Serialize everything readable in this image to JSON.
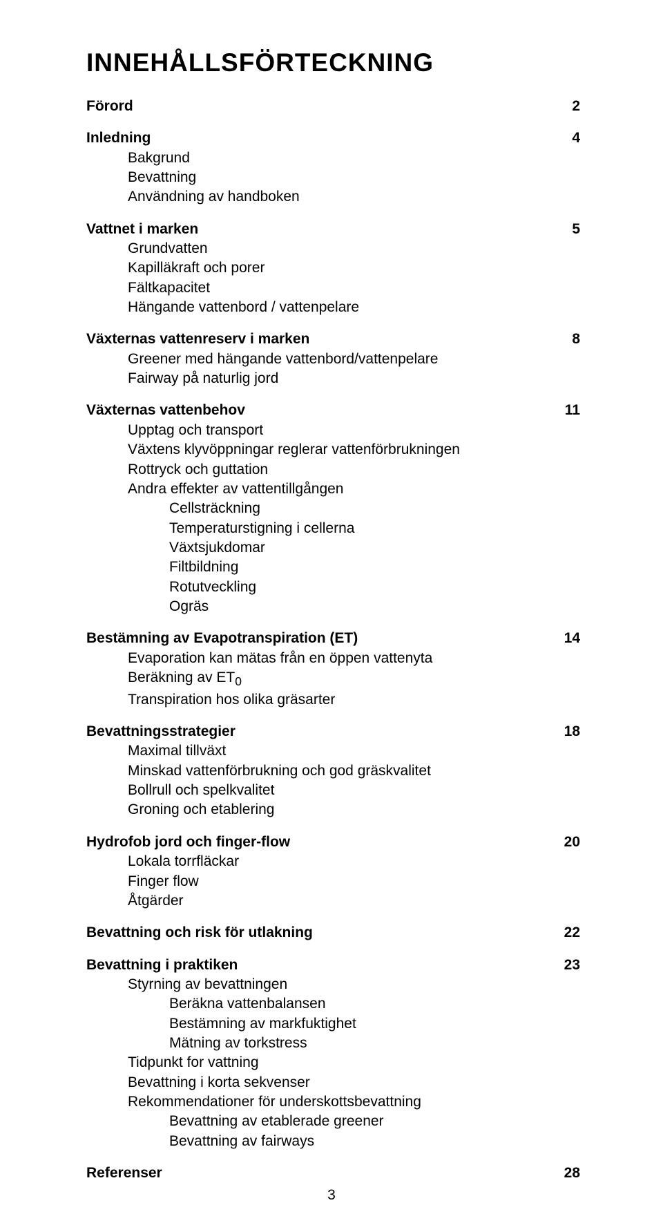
{
  "title": "INNEHÅLLSFÖRTECKNING",
  "footer_page": "3",
  "sections": [
    {
      "heading": "Förord",
      "page": "2",
      "items": []
    },
    {
      "heading": "Inledning",
      "page": "4",
      "items": [
        {
          "text": "Bakgrund",
          "level": 1
        },
        {
          "text": "Bevattning",
          "level": 1
        },
        {
          "text": "Användning av handboken",
          "level": 1
        }
      ]
    },
    {
      "heading": "Vattnet i marken",
      "page": "5",
      "items": [
        {
          "text": "Grundvatten",
          "level": 1
        },
        {
          "text": "Kapilläkraft och porer",
          "level": 1
        },
        {
          "text": "Fältkapacitet",
          "level": 1
        },
        {
          "text": "Hängande vattenbord / vattenpelare",
          "level": 1
        }
      ]
    },
    {
      "heading": "Växternas vattenreserv i marken",
      "page": "8",
      "items": [
        {
          "text": "Greener med hängande vattenbord/vattenpelare",
          "level": 1
        },
        {
          "text": "Fairway på naturlig jord",
          "level": 1
        }
      ]
    },
    {
      "heading": "Växternas vattenbehov",
      "page": "11",
      "items": [
        {
          "text": "Upptag och transport",
          "level": 1
        },
        {
          "text": "Växtens klyvöppningar reglerar vattenförbrukningen",
          "level": 1
        },
        {
          "text": "Rottryck och guttation",
          "level": 1
        },
        {
          "text": "Andra effekter av vattentillgången",
          "level": 1
        },
        {
          "text": "Cellsträckning",
          "level": 2
        },
        {
          "text": "Temperaturstigning i cellerna",
          "level": 2
        },
        {
          "text": "Växtsjukdomar",
          "level": 2
        },
        {
          "text": "Filtbildning",
          "level": 2
        },
        {
          "text": "Rotutveckling",
          "level": 2
        },
        {
          "text": "Ogräs",
          "level": 2
        }
      ]
    },
    {
      "heading": "Bestämning av Evapotranspiration (ET)",
      "page": "14",
      "items": [
        {
          "text": "Evaporation kan mätas från en öppen vattenyta",
          "level": 1
        },
        {
          "text": "Beräkning av ET",
          "level": 1,
          "sub": "0"
        },
        {
          "text": "Transpiration hos olika gräsarter",
          "level": 1
        }
      ]
    },
    {
      "heading": "Bevattningsstrategier",
      "page": "18",
      "items": [
        {
          "text": "Maximal tillväxt",
          "level": 1
        },
        {
          "text": "Minskad vattenförbrukning och god gräskvalitet",
          "level": 1
        },
        {
          "text": "Bollrull och spelkvalitet",
          "level": 1
        },
        {
          "text": "Groning och etablering",
          "level": 1
        }
      ]
    },
    {
      "heading": "Hydrofob jord och finger-flow",
      "page": "20",
      "items": [
        {
          "text": "Lokala torrfläckar",
          "level": 1
        },
        {
          "text": "Finger flow",
          "level": 1
        },
        {
          "text": "Åtgärder",
          "level": 1
        }
      ]
    },
    {
      "heading": "Bevattning och risk för utlakning",
      "page": "22",
      "items": []
    },
    {
      "heading": "Bevattning i praktiken",
      "page": "23",
      "items": [
        {
          "text": "Styrning av bevattningen",
          "level": 1
        },
        {
          "text": "Beräkna vattenbalansen",
          "level": 2
        },
        {
          "text": "Bestämning av markfuktighet",
          "level": 2
        },
        {
          "text": "Mätning av torkstress",
          "level": 2
        },
        {
          "text": "Tidpunkt for vattning",
          "level": 1
        },
        {
          "text": "Bevattning i korta sekvenser",
          "level": 1
        },
        {
          "text": "Rekommendationer för underskottsbevattning",
          "level": 1
        },
        {
          "text": "Bevattning av etablerade greener",
          "level": 2
        },
        {
          "text": "Bevattning av fairways",
          "level": 2
        }
      ]
    },
    {
      "heading": "Referenser",
      "page": "28",
      "items": []
    }
  ]
}
